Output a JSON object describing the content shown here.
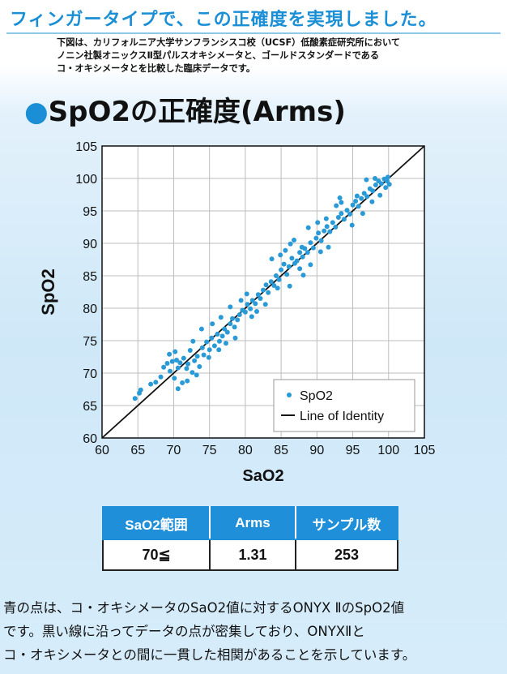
{
  "header": {
    "title": "フィンガータイプで、この正確度を実現しました。",
    "intro_lines": [
      "下図は、カリフォルニア大学サンフランシスコ校（UCSF）低酸素症研究所において",
      "ノニン社製オニックスⅡ型パルスオキシメータと、ゴールドスタンダードである",
      "コ・オキシメータとを比較した臨床データです。"
    ]
  },
  "section": {
    "bullet": "●",
    "title": "SpO2の正確度(Arms)"
  },
  "colors": {
    "accent": "#1a8fd6",
    "points": "#2a9ad6",
    "identity_line": "#111111",
    "table_header": "#1e8fd8"
  },
  "chart_data": {
    "type": "scatter",
    "xlabel": "SaO2",
    "ylabel": "SpO2",
    "xlim": [
      60,
      105
    ],
    "ylim": [
      60,
      105
    ],
    "x_ticks": [
      "60",
      "65",
      "70",
      "75",
      "80",
      "85",
      "90",
      "95",
      "100",
      "105"
    ],
    "y_ticks": [
      "60",
      "65",
      "70",
      "75",
      "80",
      "85",
      "90",
      "95",
      "100",
      "105"
    ],
    "grid": true,
    "legend": {
      "position": "bottom-right",
      "entries": [
        "SpO2",
        "Line of Identity"
      ]
    },
    "series": [
      {
        "name": "SpO2",
        "points": [
          [
            64.6,
            66.1
          ],
          [
            65.2,
            66.9
          ],
          [
            66.8,
            68.3
          ],
          [
            67.5,
            68.6
          ],
          [
            68.2,
            69.4
          ],
          [
            68.6,
            70.9
          ],
          [
            69.1,
            71.5
          ],
          [
            69.5,
            70.3
          ],
          [
            69.8,
            71.8
          ],
          [
            70.1,
            69.2
          ],
          [
            70.4,
            72.0
          ],
          [
            70.6,
            70.8
          ],
          [
            70.9,
            71.6
          ],
          [
            71.2,
            68.5
          ],
          [
            71.4,
            72.3
          ],
          [
            71.8,
            70.7
          ],
          [
            72.0,
            71.4
          ],
          [
            72.3,
            73.5
          ],
          [
            72.6,
            70.1
          ],
          [
            72.9,
            71.9
          ],
          [
            73.3,
            72.6
          ],
          [
            73.6,
            71.0
          ],
          [
            74.0,
            73.9
          ],
          [
            74.2,
            72.8
          ],
          [
            74.6,
            74.8
          ],
          [
            75.0,
            73.6
          ],
          [
            75.3,
            75.4
          ],
          [
            75.7,
            74.2
          ],
          [
            76.1,
            76.0
          ],
          [
            76.4,
            74.9
          ],
          [
            76.8,
            75.7
          ],
          [
            77.1,
            76.8
          ],
          [
            77.5,
            76.3
          ],
          [
            77.9,
            77.6
          ],
          [
            78.2,
            78.4
          ],
          [
            78.5,
            77.1
          ],
          [
            78.9,
            78.2
          ],
          [
            79.2,
            79.0
          ],
          [
            79.6,
            79.7
          ],
          [
            80.0,
            79.4
          ],
          [
            80.3,
            80.6
          ],
          [
            80.7,
            79.9
          ],
          [
            81.0,
            81.2
          ],
          [
            81.4,
            80.7
          ],
          [
            81.8,
            82.1
          ],
          [
            82.1,
            81.5
          ],
          [
            82.5,
            82.8
          ],
          [
            82.9,
            83.6
          ],
          [
            83.2,
            82.4
          ],
          [
            83.6,
            84.1
          ],
          [
            84.0,
            83.5
          ],
          [
            84.3,
            85.0
          ],
          [
            84.7,
            84.4
          ],
          [
            85.0,
            85.9
          ],
          [
            85.4,
            86.8
          ],
          [
            85.8,
            85.2
          ],
          [
            86.1,
            86.4
          ],
          [
            86.5,
            87.7
          ],
          [
            86.9,
            86.9
          ],
          [
            87.2,
            87.3
          ],
          [
            87.6,
            88.6
          ],
          [
            88.0,
            87.9
          ],
          [
            88.3,
            89.2
          ],
          [
            88.7,
            88.6
          ],
          [
            89.1,
            90.1
          ],
          [
            89.5,
            89.3
          ],
          [
            89.9,
            90.8
          ],
          [
            90.2,
            91.6
          ],
          [
            90.6,
            90.4
          ],
          [
            91.0,
            91.9
          ],
          [
            91.4,
            92.6
          ],
          [
            91.8,
            91.8
          ],
          [
            92.2,
            93.2
          ],
          [
            92.6,
            92.5
          ],
          [
            93.0,
            94.0
          ],
          [
            93.4,
            94.6
          ],
          [
            93.8,
            93.7
          ],
          [
            94.2,
            95.1
          ],
          [
            94.6,
            94.5
          ],
          [
            95.0,
            95.9
          ],
          [
            95.4,
            96.5
          ],
          [
            95.8,
            95.7
          ],
          [
            96.2,
            96.9
          ],
          [
            96.6,
            97.7
          ],
          [
            97.0,
            97.2
          ],
          [
            97.4,
            98.4
          ],
          [
            97.8,
            98.1
          ],
          [
            98.2,
            99.0
          ],
          [
            98.6,
            99.6
          ],
          [
            99.0,
            99.2
          ],
          [
            99.4,
            99.9
          ],
          [
            99.8,
            99.6
          ],
          [
            92.7,
            95.8
          ],
          [
            93.4,
            96.3
          ],
          [
            88.8,
            92.4
          ],
          [
            86.3,
            89.9
          ],
          [
            84.9,
            88.2
          ],
          [
            83.7,
            87.6
          ],
          [
            87.6,
            86.1
          ],
          [
            89.1,
            86.7
          ],
          [
            88.1,
            85.1
          ],
          [
            86.2,
            83.4
          ],
          [
            84.5,
            83.1
          ],
          [
            80.2,
            82.2
          ],
          [
            79.4,
            81.2
          ],
          [
            77.9,
            80.2
          ],
          [
            76.6,
            78.6
          ],
          [
            75.4,
            77.6
          ],
          [
            73.9,
            76.8
          ],
          [
            72.7,
            74.9
          ],
          [
            74.9,
            72.4
          ],
          [
            76.3,
            73.6
          ],
          [
            77.3,
            74.6
          ],
          [
            78.6,
            75.4
          ],
          [
            71.9,
            68.8
          ],
          [
            70.6,
            67.6
          ],
          [
            73.2,
            69.7
          ],
          [
            69.4,
            72.9
          ],
          [
            70.2,
            73.3
          ],
          [
            94.9,
            92.8
          ],
          [
            96.4,
            94.6
          ],
          [
            97.7,
            96.4
          ],
          [
            98.8,
            97.4
          ],
          [
            99.6,
            98.6
          ],
          [
            100.1,
            99.1
          ],
          [
            91.6,
            89.4
          ],
          [
            90.5,
            88.7
          ],
          [
            82.8,
            80.6
          ],
          [
            81.6,
            79.5
          ],
          [
            80.9,
            78.7
          ],
          [
            85.6,
            88.9
          ],
          [
            86.8,
            90.5
          ],
          [
            87.9,
            89.4
          ],
          [
            90.1,
            93.2
          ],
          [
            91.3,
            93.8
          ],
          [
            93.2,
            97.0
          ],
          [
            95.6,
            97.3
          ],
          [
            96.9,
            99.8
          ],
          [
            98.1,
            100.0
          ],
          [
            99.9,
            100.2
          ],
          [
            65.4,
            67.4
          ]
        ]
      }
    ],
    "identity_line": {
      "name": "Line of Identity",
      "from": [
        60,
        60
      ],
      "to": [
        105,
        105
      ]
    }
  },
  "table": {
    "headers": [
      "SaO2範囲",
      "Arms",
      "サンプル数"
    ],
    "row": [
      "70≦",
      "1.31",
      "253"
    ]
  },
  "summary_lines": [
    "青の点は、コ・オキシメータのSaO2値に対するONYX ⅡのSpO2値",
    "です。黒い線に沿ってデータの点が密集しており、ONYXⅡと",
    "コ・オキシメータとの間に一貫した相関があることを示しています。"
  ]
}
